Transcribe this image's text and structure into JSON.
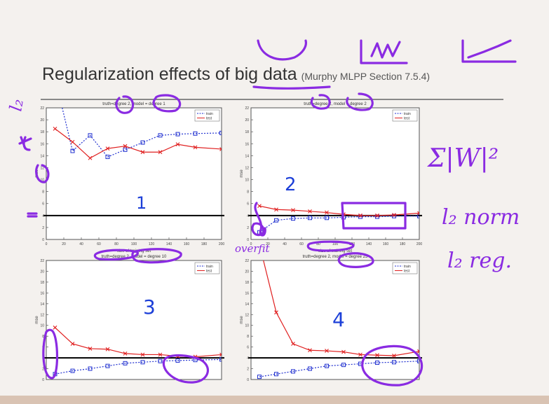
{
  "slide": {
    "title": "Regularization effects of big data",
    "subtitle": "(Murphy MLPP Section 7.5.4)"
  },
  "annotations": {
    "sum_w_sq": "Σ|W|²",
    "l2_norm": "l₂ norm",
    "l2_reg": "l₂ reg.",
    "overfit": "overfit",
    "left_l2": "l₂",
    "panel_numbers": [
      "1",
      "2",
      "3",
      "4"
    ]
  },
  "colors": {
    "train": "#2030d0",
    "test": "#e02020",
    "ink": "#8a2be2",
    "blue_ink": "#1c3fd8"
  },
  "chart_data": [
    {
      "type": "line",
      "title": "truth=degree 2, model = degree 1",
      "xlabel": "size of training set",
      "ylabel": "mse",
      "x": [
        10,
        30,
        50,
        70,
        90,
        110,
        130,
        150,
        170,
        200
      ],
      "xlim": [
        0,
        200
      ],
      "ylim": [
        0,
        22
      ],
      "xticks": [
        0,
        20,
        40,
        60,
        80,
        100,
        120,
        140,
        160,
        180,
        200
      ],
      "yticks": [
        0,
        2,
        4,
        6,
        8,
        10,
        12,
        14,
        16,
        18,
        20,
        22
      ],
      "legend": "top-right",
      "noise_floor": 4,
      "series": [
        {
          "name": "train",
          "values": [
            27,
            14.8,
            17.4,
            13.8,
            15.0,
            16.2,
            17.4,
            17.6,
            17.7,
            17.8
          ]
        },
        {
          "name": "test",
          "values": [
            18.5,
            16.3,
            13.6,
            15.2,
            15.6,
            14.6,
            14.6,
            15.9,
            15.4,
            15.1
          ]
        }
      ]
    },
    {
      "type": "line",
      "title": "truth=degree 2, model = degree 2",
      "xlabel": "size of training set",
      "ylabel": "mse",
      "x": [
        10,
        30,
        50,
        70,
        90,
        110,
        130,
        150,
        170,
        200
      ],
      "xlim": [
        0,
        200
      ],
      "ylim": [
        0,
        22
      ],
      "xticks": [
        0,
        20,
        40,
        60,
        80,
        100,
        120,
        140,
        160,
        180,
        200
      ],
      "yticks": [
        0,
        2,
        4,
        6,
        8,
        10,
        12,
        14,
        16,
        18,
        20,
        22
      ],
      "legend": "top-right",
      "noise_floor": 4,
      "series": [
        {
          "name": "train",
          "values": [
            1.2,
            3.2,
            3.5,
            3.6,
            3.6,
            3.7,
            3.8,
            3.8,
            3.9,
            3.9
          ]
        },
        {
          "name": "test",
          "values": [
            5.6,
            5.0,
            4.9,
            4.7,
            4.5,
            4.2,
            4.0,
            4.0,
            4.1,
            4.4
          ]
        }
      ]
    },
    {
      "type": "line",
      "title": "truth=degree 2, model = degree 10",
      "xlabel": "",
      "ylabel": "mse",
      "x": [
        10,
        30,
        50,
        70,
        90,
        110,
        130,
        150,
        170,
        200
      ],
      "xlim": [
        0,
        200
      ],
      "ylim": [
        0,
        22
      ],
      "yticks": [
        0,
        2,
        4,
        6,
        8,
        10,
        12,
        14,
        16,
        18,
        20,
        22
      ],
      "legend": "top-right",
      "noise_floor": 4,
      "series": [
        {
          "name": "train",
          "values": [
            1.0,
            1.6,
            2.0,
            2.5,
            3.0,
            3.2,
            3.4,
            3.5,
            3.6,
            3.7
          ]
        },
        {
          "name": "test",
          "values": [
            9.6,
            6.6,
            5.7,
            5.6,
            4.8,
            4.6,
            4.6,
            4.3,
            4.2,
            4.6
          ]
        }
      ]
    },
    {
      "type": "line",
      "title": "truth=degree 2, model = degree 25",
      "xlabel": "",
      "ylabel": "mse",
      "x": [
        10,
        30,
        50,
        70,
        90,
        110,
        130,
        150,
        170,
        200
      ],
      "xlim": [
        0,
        200
      ],
      "ylim": [
        0,
        22
      ],
      "yticks": [
        0,
        2,
        4,
        6,
        8,
        10,
        12,
        14,
        16,
        18,
        20,
        22
      ],
      "legend": "top-right",
      "noise_floor": 4,
      "series": [
        {
          "name": "train",
          "values": [
            0.5,
            1.0,
            1.5,
            2.0,
            2.5,
            2.7,
            2.9,
            3.1,
            3.2,
            3.4
          ]
        },
        {
          "name": "test",
          "values": [
            25,
            12.4,
            6.6,
            5.4,
            5.3,
            5.1,
            4.6,
            4.5,
            4.4,
            5.2
          ]
        }
      ]
    }
  ]
}
